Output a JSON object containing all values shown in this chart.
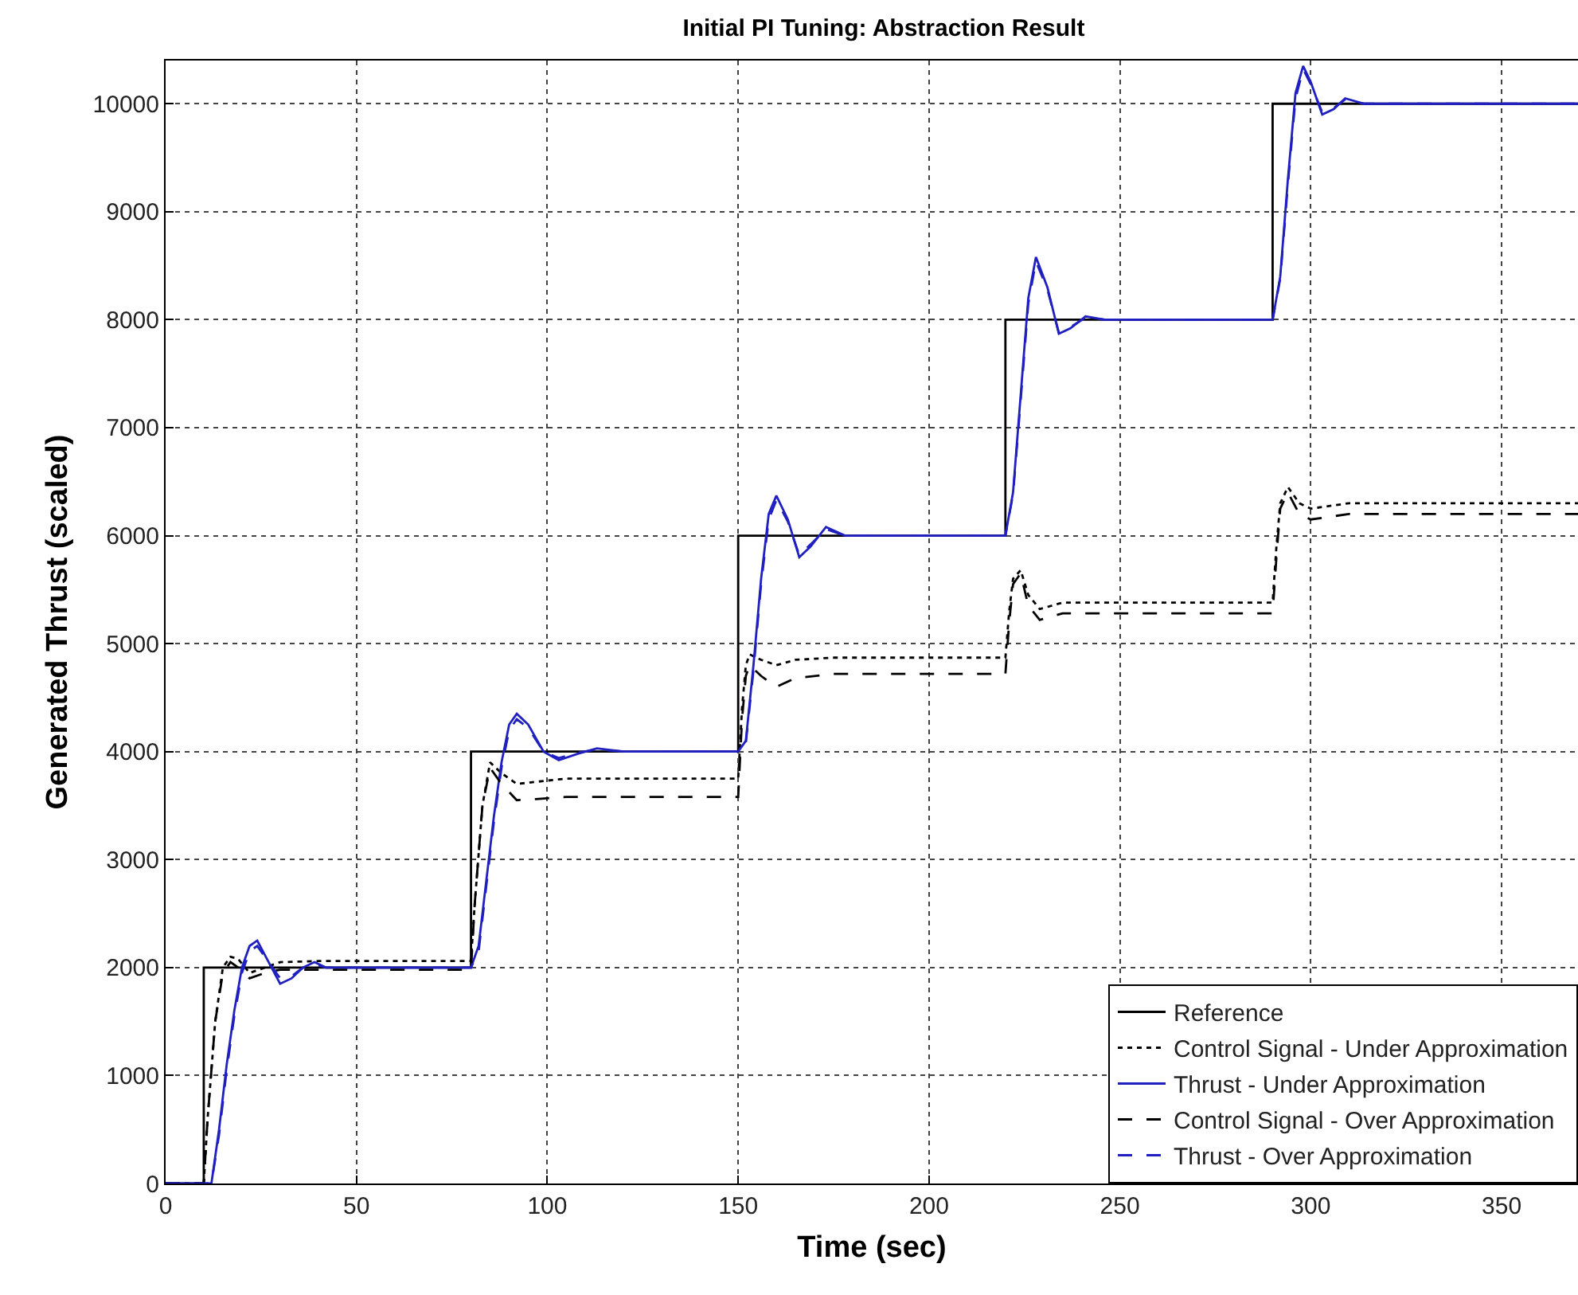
{
  "chart_data": {
    "type": "line",
    "title": "Initial PI Tuning: Abstraction Result",
    "xlabel": "Time (sec)",
    "ylabel": "Generated Thrust (scaled)",
    "xlim": [
      0,
      370
    ],
    "xticks": [
      0,
      50,
      100,
      150,
      200,
      250,
      300,
      350
    ],
    "ylim": [
      0,
      10400
    ],
    "yticks": [
      0,
      1000,
      2000,
      3000,
      4000,
      5000,
      6000,
      7000,
      8000,
      9000,
      10000
    ],
    "grid": true,
    "legend": "bottom right",
    "marker": "none",
    "series": [
      {
        "name": "Reference",
        "color": "#000000",
        "line_style": "solid",
        "x": [
          0,
          10,
          10,
          80,
          80,
          150,
          150,
          220,
          220,
          290,
          290,
          370
        ],
        "values": [
          0,
          0,
          2000,
          2000,
          4000,
          4000,
          6000,
          6000,
          8000,
          8000,
          10000,
          10000
        ]
      },
      {
        "name": "Control Signal - Under Approximation",
        "color": "#000000",
        "line_style": "dotted",
        "x": [
          0,
          10,
          11,
          13,
          15,
          17,
          19,
          22,
          26,
          30,
          40,
          80,
          81,
          83,
          85,
          88,
          92,
          97,
          105,
          150,
          151,
          152,
          153,
          156,
          160,
          165,
          175,
          220,
          221,
          222,
          224,
          226,
          229,
          235,
          290,
          291,
          292,
          294,
          297,
          300,
          310,
          370
        ],
        "values": [
          0,
          0,
          600,
          1500,
          2000,
          2100,
          2080,
          1950,
          2000,
          2050,
          2060,
          2060,
          2600,
          3500,
          3900,
          3800,
          3700,
          3720,
          3750,
          3750,
          4400,
          4800,
          4900,
          4850,
          4800,
          4850,
          4870,
          4870,
          5300,
          5600,
          5680,
          5450,
          5320,
          5380,
          5380,
          5900,
          6300,
          6450,
          6300,
          6250,
          6300,
          6300
        ]
      },
      {
        "name": "Thrust - Under Approximation",
        "color": "#2020c0",
        "line_style": "solid",
        "x": [
          0,
          12,
          14,
          16,
          18,
          20,
          22,
          24,
          27,
          30,
          33,
          36,
          39,
          42,
          50,
          80,
          82,
          84,
          86,
          88,
          90,
          92,
          95,
          99,
          103,
          108,
          113,
          120,
          150,
          152,
          154,
          156,
          158,
          160,
          163,
          166,
          169,
          173,
          178,
          220,
          222,
          224,
          226,
          228,
          231,
          234,
          237,
          241,
          246,
          290,
          292,
          294,
          296,
          298,
          300,
          303,
          306,
          309,
          314,
          370
        ],
        "values": [
          0,
          0,
          500,
          1100,
          1600,
          2000,
          2200,
          2250,
          2050,
          1850,
          1900,
          2000,
          2050,
          2000,
          2000,
          2000,
          2200,
          2800,
          3400,
          3900,
          4250,
          4350,
          4250,
          4000,
          3920,
          3980,
          4030,
          4000,
          4000,
          4100,
          4800,
          5600,
          6200,
          6370,
          6150,
          5800,
          5900,
          6080,
          6000,
          6000,
          6400,
          7300,
          8200,
          8580,
          8300,
          7870,
          7920,
          8030,
          8000,
          8000,
          8400,
          9300,
          10100,
          10350,
          10200,
          9900,
          9950,
          10050,
          10000,
          10000
        ]
      },
      {
        "name": "Control Signal - Over Approximation",
        "color": "#000000",
        "line_style": "dashed",
        "x": [
          0,
          10,
          11,
          13,
          15,
          17,
          19,
          22,
          26,
          30,
          40,
          80,
          81,
          83,
          85,
          88,
          92,
          97,
          105,
          150,
          151,
          152,
          153,
          156,
          160,
          165,
          175,
          220,
          221,
          222,
          224,
          226,
          229,
          235,
          290,
          291,
          292,
          294,
          297,
          300,
          310,
          370
        ],
        "values": [
          0,
          0,
          600,
          1500,
          1950,
          2050,
          2000,
          1900,
          1950,
          1980,
          1980,
          1980,
          2600,
          3500,
          3850,
          3700,
          3550,
          3560,
          3580,
          3580,
          4300,
          4700,
          4800,
          4700,
          4600,
          4680,
          4720,
          4720,
          5200,
          5550,
          5650,
          5350,
          5220,
          5280,
          5280,
          5800,
          6250,
          6400,
          6200,
          6150,
          6200,
          6200
        ]
      },
      {
        "name": "Thrust - Over Approximation",
        "color": "#2020c0",
        "line_style": "dashed",
        "x": [
          0,
          12,
          14,
          16,
          18,
          20,
          22,
          24,
          27,
          30,
          33,
          36,
          39,
          42,
          50,
          80,
          82,
          84,
          86,
          88,
          90,
          92,
          95,
          99,
          103,
          108,
          113,
          120,
          150,
          152,
          154,
          156,
          158,
          160,
          163,
          166,
          169,
          173,
          178,
          220,
          222,
          224,
          226,
          228,
          231,
          234,
          237,
          241,
          246,
          290,
          292,
          294,
          296,
          298,
          300,
          303,
          306,
          309,
          314,
          370
        ],
        "values": [
          0,
          0,
          450,
          1050,
          1550,
          1950,
          2150,
          2200,
          2050,
          1900,
          1920,
          2000,
          2030,
          2000,
          2000,
          2000,
          2150,
          2750,
          3350,
          3850,
          4200,
          4300,
          4220,
          4000,
          3940,
          3990,
          4020,
          4000,
          4000,
          4080,
          4750,
          5550,
          6150,
          6330,
          6130,
          5820,
          5920,
          6060,
          6000,
          6000,
          6380,
          7250,
          8150,
          8540,
          8280,
          7880,
          7930,
          8020,
          8000,
          8000,
          8380,
          9250,
          10050,
          10320,
          10180,
          9920,
          9960,
          10040,
          10000,
          10000
        ]
      }
    ]
  }
}
